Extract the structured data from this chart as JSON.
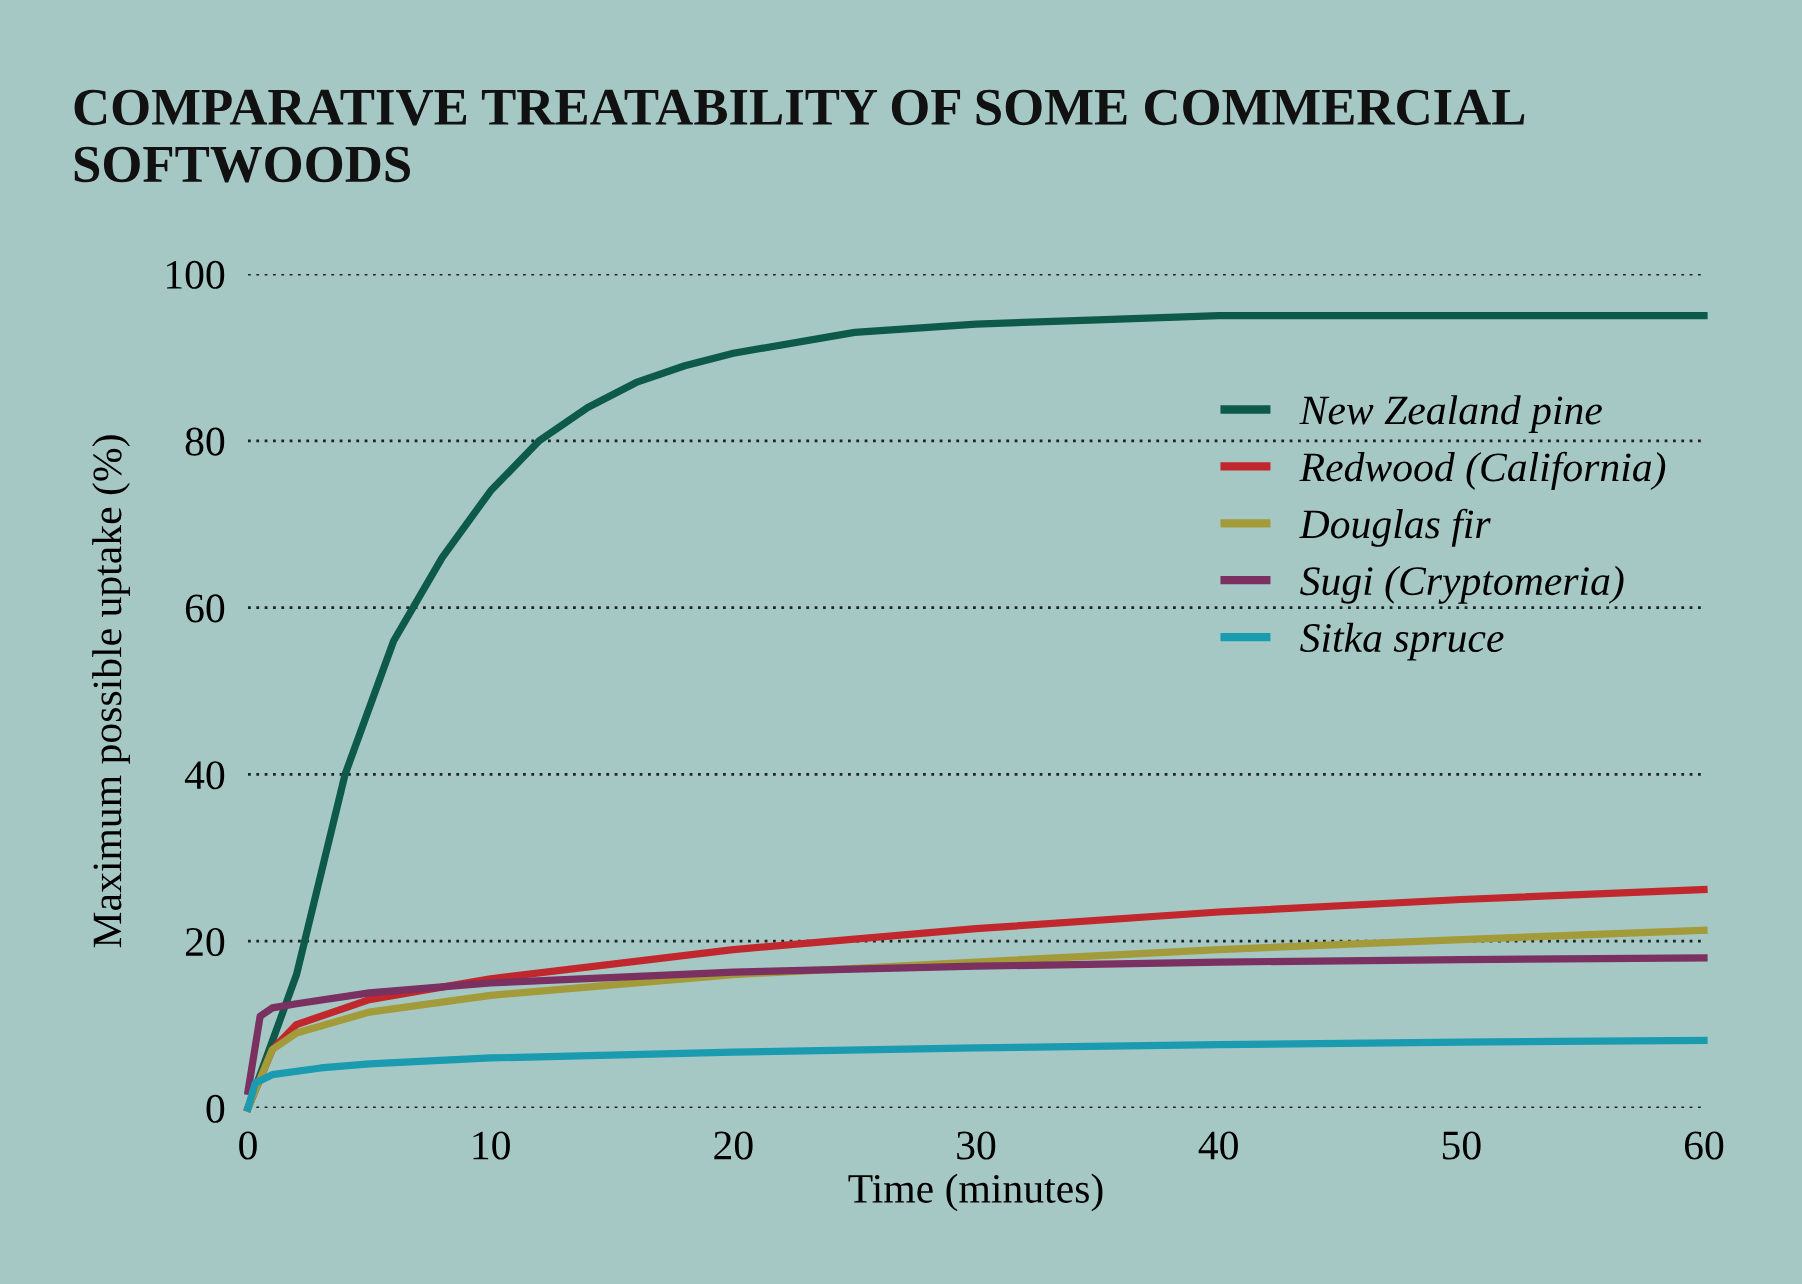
{
  "chart_data": {
    "type": "line",
    "title": "COMPARATIVE TREATABILITY OF SOME COMMERCIAL SOFTWOODS",
    "xlabel": "Time (minutes)",
    "ylabel": "Maximum possible uptake (%)",
    "xlim": [
      0,
      60
    ],
    "xticks": [
      0,
      10,
      20,
      30,
      40,
      50,
      60
    ],
    "ylim": [
      0,
      100
    ],
    "yticks": [
      0,
      20,
      40,
      60,
      80,
      100
    ],
    "grid": "y",
    "legend": "top right",
    "marker": "none",
    "line_style": "solid",
    "series": [
      {
        "name": "New Zealand pine",
        "color": "#0d5a4a",
        "x": [
          0,
          1,
          2,
          3,
          4,
          5,
          6,
          8,
          10,
          12,
          14,
          16,
          18,
          20,
          25,
          30,
          35,
          40,
          50,
          60
        ],
        "values": [
          0,
          8,
          16,
          28,
          40,
          48,
          56,
          66,
          74,
          80,
          84,
          87,
          89,
          90.5,
          93,
          94,
          94.5,
          95,
          95,
          95
        ]
      },
      {
        "name": "Redwood (California)",
        "color": "#c0282d",
        "x": [
          0,
          1,
          2,
          5,
          10,
          20,
          30,
          40,
          50,
          60
        ],
        "values": [
          0,
          7,
          10,
          13,
          15.5,
          19,
          21.5,
          23.5,
          25,
          26.2
        ]
      },
      {
        "name": "Douglas fir",
        "color": "#a39a3a",
        "x": [
          0,
          1,
          2,
          5,
          10,
          20,
          30,
          40,
          50,
          60
        ],
        "values": [
          0,
          7,
          9,
          11.5,
          13.5,
          16,
          17.5,
          19,
          20.2,
          21.3
        ]
      },
      {
        "name": "Sugi (Cryptomeria)",
        "color": "#7a3060",
        "x": [
          0,
          0.5,
          1,
          2,
          5,
          10,
          20,
          30,
          40,
          50,
          60
        ],
        "values": [
          2,
          11,
          12,
          12.5,
          13.8,
          15,
          16.3,
          17,
          17.5,
          17.8,
          18
        ]
      },
      {
        "name": "Sitka spruce",
        "color": "#1a9bb0",
        "x": [
          0,
          0.3,
          1,
          3,
          5,
          10,
          20,
          30,
          40,
          50,
          60
        ],
        "values": [
          0,
          3,
          4,
          4.8,
          5.3,
          6,
          6.7,
          7.2,
          7.6,
          7.9,
          8.1
        ]
      }
    ]
  }
}
